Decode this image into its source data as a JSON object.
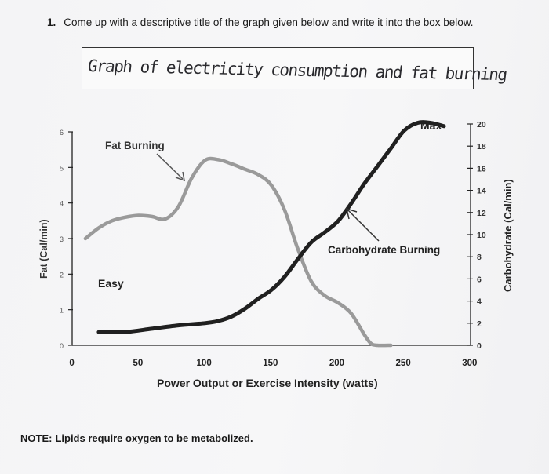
{
  "question": {
    "number": "1.",
    "text": "Come up with a descriptive title of the graph given below and write it into the box below."
  },
  "answer": {
    "handwritten_title": "Graph of electricity consumption and fat burning"
  },
  "note": {
    "label": "NOTE:",
    "text": "Lipids require oxygen to be metabolized."
  },
  "chart_data": {
    "type": "line",
    "xlabel": "Power Output or Exercise Intensity (watts)",
    "ylabel_left": "Fat (Cal/min)",
    "ylabel_right": "Carbohydrate (Cal/min)",
    "x_ticks": [
      "0",
      "50",
      "100",
      "150",
      "200",
      "250",
      "300"
    ],
    "y_left_ticks": [
      "0",
      "1",
      "2",
      "3",
      "4",
      "5",
      "6"
    ],
    "y_right_ticks": [
      "0",
      "2",
      "4",
      "6",
      "8",
      "10",
      "12",
      "14",
      "16",
      "18",
      "20"
    ],
    "xlim": [
      0,
      300
    ],
    "ylim_left": [
      0,
      6
    ],
    "ylim_right": [
      0,
      20
    ],
    "annotations": {
      "fat_burning": "Fat Burning",
      "carbohydrate_burning": "Carbohydrate Burning",
      "easy": "Easy",
      "max": "Max"
    },
    "series": [
      {
        "name": "Fat Burning",
        "axis": "left",
        "x": [
          10,
          20,
          30,
          40,
          50,
          60,
          70,
          80,
          90,
          100,
          110,
          120,
          130,
          140,
          150,
          160,
          170,
          180,
          190,
          200,
          210,
          220,
          225,
          230,
          240
        ],
        "values": [
          3.0,
          3.3,
          3.5,
          3.6,
          3.65,
          3.62,
          3.55,
          3.9,
          4.7,
          5.2,
          5.22,
          5.1,
          4.95,
          4.8,
          4.5,
          3.8,
          2.7,
          1.8,
          1.4,
          1.2,
          0.9,
          0.3,
          0.05,
          0.0,
          0.0
        ]
      },
      {
        "name": "Carbohydrate Burning",
        "axis": "right",
        "x": [
          20,
          40,
          60,
          80,
          100,
          110,
          120,
          130,
          140,
          150,
          160,
          170,
          180,
          190,
          200,
          210,
          220,
          230,
          240,
          250,
          260,
          270,
          280
        ],
        "values": [
          1.2,
          1.2,
          1.5,
          1.8,
          2.0,
          2.2,
          2.6,
          3.3,
          4.2,
          5.0,
          6.2,
          7.8,
          9.3,
          10.2,
          11.2,
          12.8,
          14.6,
          16.2,
          17.8,
          19.4,
          20.1,
          20.1,
          19.8
        ]
      }
    ]
  }
}
